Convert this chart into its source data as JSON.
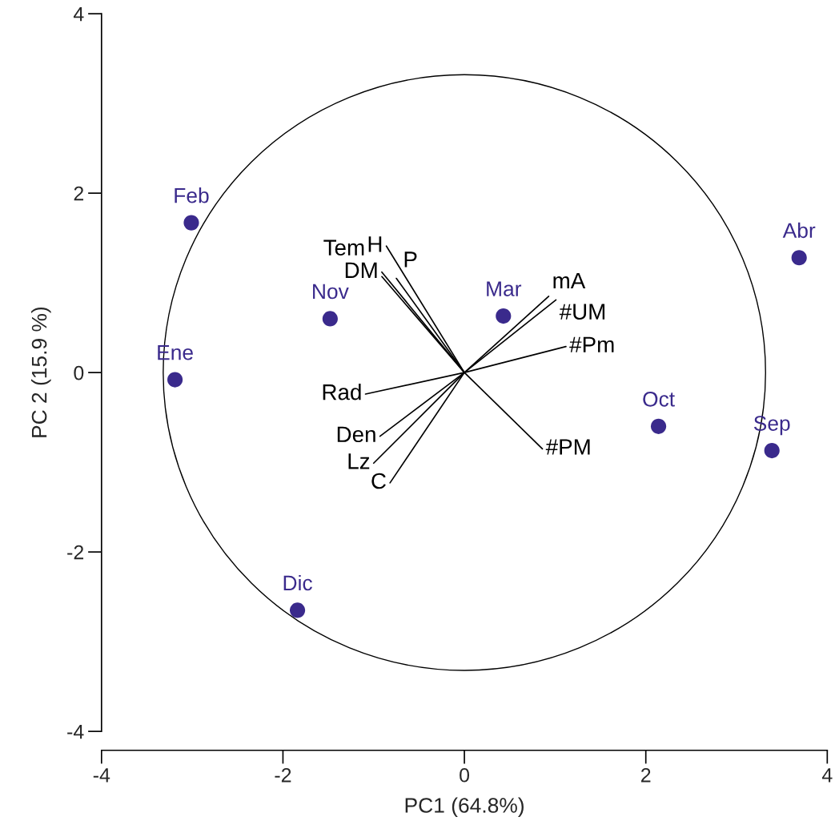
{
  "chart_data": {
    "type": "scatter",
    "xlabel": "PC1 (64.8%)",
    "ylabel": "PC 2 (15.9 %)",
    "xlim": [
      -4,
      4
    ],
    "ylim": [
      -4,
      4
    ],
    "xticks": [
      -4,
      -2,
      0,
      2,
      4
    ],
    "yticks": [
      -4,
      -2,
      0,
      2,
      4
    ],
    "grid": false,
    "legend": false,
    "series": [
      {
        "marker": "circle",
        "color": "#3a2a8c",
        "x": [
          -3.01,
          3.69,
          -1.48,
          0.43,
          -3.19,
          2.14,
          3.39,
          -1.84
        ],
        "values": [
          1.67,
          1.28,
          0.6,
          0.63,
          -0.08,
          -0.6,
          -0.87,
          -2.65
        ],
        "value_labels": [
          "Feb",
          "Abr",
          "Nov",
          "Mar",
          "Ene",
          "Oct",
          "Sep",
          "Dic"
        ]
      },
      {
        "type": "line",
        "name": "H",
        "color": "#000000",
        "x": [
          0,
          -0.86
        ],
        "values": [
          0,
          1.41
        ]
      },
      {
        "type": "line",
        "name": "DM",
        "color": "#000000",
        "x": [
          0,
          -0.91
        ],
        "values": [
          0,
          1.12
        ]
      },
      {
        "type": "line",
        "name": "P",
        "color": "#000000",
        "x": [
          0,
          -0.75
        ],
        "values": [
          0,
          1.05
        ]
      },
      {
        "type": "line",
        "name": "Tem",
        "color": "#000000",
        "x": [
          0,
          -0.91
        ],
        "values": [
          0,
          1.07
        ]
      },
      {
        "type": "line",
        "name": "mA",
        "color": "#000000",
        "x": [
          0,
          0.93
        ],
        "values": [
          0,
          0.85
        ]
      },
      {
        "type": "line",
        "name": "#UM",
        "color": "#000000",
        "x": [
          0,
          1.01
        ],
        "values": [
          0,
          0.81
        ]
      },
      {
        "type": "line",
        "name": "#Pm",
        "color": "#000000",
        "x": [
          0,
          1.12
        ],
        "values": [
          0,
          0.29
        ]
      },
      {
        "type": "line",
        "name": "#PM",
        "color": "#000000",
        "x": [
          0,
          0.86
        ],
        "values": [
          0,
          -0.85
        ]
      },
      {
        "type": "line",
        "name": "Rad",
        "color": "#000000",
        "x": [
          0,
          -1.09
        ],
        "values": [
          0,
          -0.24
        ]
      },
      {
        "type": "line",
        "name": "Den",
        "color": "#000000",
        "x": [
          0,
          -0.93
        ],
        "values": [
          0,
          -0.71
        ]
      },
      {
        "type": "line",
        "name": "Lz",
        "color": "#000000",
        "x": [
          0,
          -1.0
        ],
        "values": [
          0,
          -1.01
        ]
      },
      {
        "type": "line",
        "name": "C",
        "color": "#000000",
        "x": [
          0,
          -0.82
        ],
        "values": [
          0,
          -1.23
        ]
      }
    ]
  }
}
